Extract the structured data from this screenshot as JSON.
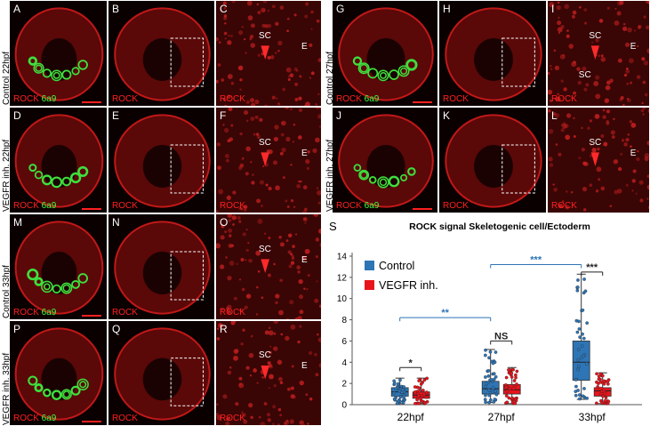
{
  "micrographs": [
    {
      "id": "A",
      "label": "A",
      "stain": [
        "ROCK",
        "6a9"
      ],
      "row_label": "Control 22hpf",
      "sc": "",
      "e": "",
      "green": true
    },
    {
      "id": "B",
      "label": "B",
      "stain": [
        "ROCK"
      ],
      "sc": "",
      "e": "",
      "green": false
    },
    {
      "id": "C",
      "label": "C",
      "stain": [
        "ROCK"
      ],
      "sc": "SC",
      "e": "E",
      "green": false
    },
    {
      "id": "D",
      "label": "D",
      "stain": [
        "ROCK",
        "6a9"
      ],
      "row_label": "VEGFR inh. 22hpf",
      "sc": "",
      "e": "",
      "green": true
    },
    {
      "id": "E",
      "label": "E",
      "stain": [
        "ROCK"
      ],
      "sc": "",
      "e": "",
      "green": false
    },
    {
      "id": "F",
      "label": "F",
      "stain": [
        "ROCK"
      ],
      "sc": "SC",
      "e": "E",
      "green": false
    },
    {
      "id": "G",
      "label": "G",
      "stain": [
        "ROCK",
        "6a9"
      ],
      "row_label": "Control 27hpf",
      "sc": "",
      "e": "",
      "green": true
    },
    {
      "id": "H",
      "label": "H",
      "stain": [
        "ROCK"
      ],
      "sc": "",
      "e": "",
      "green": false
    },
    {
      "id": "I",
      "label": "I",
      "stain": [
        "ROCK"
      ],
      "sc": "SC",
      "sc2": "SC",
      "e": "E",
      "green": false
    },
    {
      "id": "J",
      "label": "J",
      "stain": [
        "ROCK",
        "6a9"
      ],
      "row_label": "VEGFR inh. 27hpf",
      "sc": "",
      "e": "",
      "green": true
    },
    {
      "id": "K",
      "label": "K",
      "stain": [
        "ROCK"
      ],
      "sc": "",
      "e": "",
      "green": false
    },
    {
      "id": "L",
      "label": "L",
      "stain": [
        "ROCK"
      ],
      "sc": "SC",
      "e": "E",
      "green": false
    },
    {
      "id": "M",
      "label": "M",
      "stain": [
        "ROCK",
        "6a9"
      ],
      "row_label": "Control 33hpf",
      "sc": "",
      "e": "",
      "green": true
    },
    {
      "id": "N",
      "label": "N",
      "stain": [
        "ROCK"
      ],
      "sc": "",
      "e": "",
      "green": false
    },
    {
      "id": "O",
      "label": "O",
      "stain": [
        "ROCK"
      ],
      "sc": "SC",
      "e": "E",
      "green": false
    },
    {
      "id": "P",
      "label": "P",
      "stain": [
        "ROCK",
        "6a9"
      ],
      "row_label": "VEGFR inh. 33hpf",
      "sc": "",
      "e": "",
      "green": true
    },
    {
      "id": "Q",
      "label": "Q",
      "stain": [
        "ROCK"
      ],
      "sc": "",
      "e": "",
      "green": false
    },
    {
      "id": "R",
      "label": "R",
      "stain": [
        "ROCK"
      ],
      "sc": "SC",
      "e": "E",
      "green": false
    }
  ],
  "chart_data": {
    "type": "box",
    "panel_label": "S",
    "title": "ROCK signal  Skeletogenic cell/Ectoderm",
    "categories": [
      "22hpf",
      "27hpf",
      "33hpf"
    ],
    "ylim": [
      0,
      14
    ],
    "yticks": [
      0,
      2,
      4,
      6,
      8,
      10,
      12,
      14
    ],
    "legend_position": "top-left",
    "series": [
      {
        "name": "Control",
        "color": "#2e75b6",
        "boxes": [
          {
            "q1": 0.8,
            "median": 1.2,
            "q3": 1.6,
            "whisker_low": 0.1,
            "whisker_high": 2.5
          },
          {
            "q1": 1.0,
            "median": 1.5,
            "q3": 2.2,
            "whisker_low": 0.2,
            "whisker_high": 5.2
          },
          {
            "q1": 2.3,
            "median": 4.0,
            "q3": 6.0,
            "whisker_low": 0.5,
            "whisker_high": 12.3
          }
        ]
      },
      {
        "name": "VEGFR inh.",
        "color": "#e8141c",
        "boxes": [
          {
            "q1": 0.6,
            "median": 0.9,
            "q3": 1.2,
            "whisker_low": 0.1,
            "whisker_high": 2.5
          },
          {
            "q1": 1.0,
            "median": 1.4,
            "q3": 1.9,
            "whisker_low": 0.1,
            "whisker_high": 3.5
          },
          {
            "q1": 0.8,
            "median": 1.3,
            "q3": 1.6,
            "whisker_low": 0.1,
            "whisker_high": 3.0
          }
        ]
      }
    ],
    "significance": [
      {
        "label": "*",
        "color": "#222222",
        "x1": "22hpf:Control",
        "x2": "22hpf:VEGFR inh.",
        "y": 3.5
      },
      {
        "label": "NS",
        "color": "#222222",
        "x1": "27hpf:Control",
        "x2": "27hpf:VEGFR inh.",
        "y": 6.0
      },
      {
        "label": "***",
        "color": "#222222",
        "x1": "33hpf:Control",
        "x2": "33hpf:VEGFR inh.",
        "y": 12.5
      },
      {
        "label": "**",
        "color": "#2e75b6",
        "x1": "22hpf:Control",
        "x2": "27hpf:Control",
        "y": 8.2
      },
      {
        "label": "***",
        "color": "#2e75b6",
        "x1": "27hpf:Control",
        "x2": "33hpf:Control",
        "y": 13.2
      }
    ]
  }
}
